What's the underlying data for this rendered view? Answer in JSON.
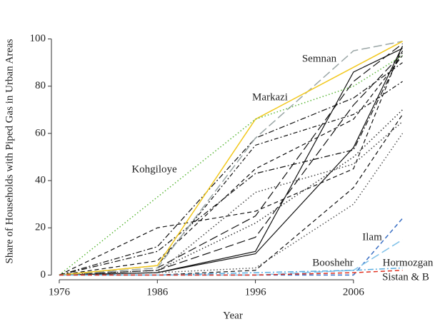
{
  "chart_data": {
    "type": "line",
    "x_label": "Year",
    "y_label": "Share of Households with Piped Gas in Urban Areas",
    "x": [
      1976,
      1986,
      1996,
      2006,
      2011
    ],
    "xlim": [
      1975.2,
      2012.2
    ],
    "xticks": [
      1976,
      1986,
      1996,
      2006
    ],
    "ylim": [
      -2,
      102
    ],
    "yticks": [
      0,
      20,
      40,
      60,
      80,
      100
    ],
    "series": [
      {
        "color": "#111111",
        "style": "dashed",
        "values": [
          0,
          20,
          27,
          45,
          97
        ]
      },
      {
        "color": "#111111",
        "style": "solid",
        "values": [
          0,
          1,
          10,
          86,
          96
        ]
      },
      {
        "color": "#111111",
        "style": "solid",
        "values": [
          0,
          1,
          9,
          54,
          97
        ]
      },
      {
        "color": "#111111",
        "style": "longdash",
        "values": [
          0,
          2,
          16,
          72,
          94
        ]
      },
      {
        "color": "#111111",
        "style": "dashdot",
        "values": [
          0,
          10,
          43,
          53,
          95
        ]
      },
      {
        "color": "#111111",
        "style": "longdash",
        "values": [
          0,
          3,
          25,
          82,
          98
        ]
      },
      {
        "color": "#111111",
        "style": "dashed",
        "values": [
          0,
          6,
          45,
          66,
          93
        ]
      },
      {
        "color": "#555555",
        "style": "dotted",
        "values": [
          0,
          1,
          3,
          30,
          60
        ]
      },
      {
        "color": "#333333",
        "style": "dotted",
        "values": [
          0,
          2,
          22,
          50,
          70
        ]
      },
      {
        "color": "#111111",
        "style": "dotdash",
        "values": [
          0,
          4,
          55,
          68,
          82
        ]
      },
      {
        "color": "#444444",
        "style": "dotted",
        "values": [
          0,
          1,
          35,
          47,
          65
        ]
      },
      {
        "color": "#111111",
        "style": "dashdot",
        "values": [
          0,
          12,
          58,
          75,
          90
        ]
      },
      {
        "color": "#111111",
        "style": "dashed",
        "values": [
          0,
          0,
          2,
          37,
          68
        ]
      },
      {
        "name": "Semnan",
        "color": "#9aa6a6",
        "style": "longdash",
        "values": [
          0,
          3,
          58,
          95,
          99
        ]
      },
      {
        "name": "Markazi",
        "color": "#f2c81e",
        "style": "solid",
        "values": [
          0,
          4,
          66,
          88,
          99
        ]
      },
      {
        "name": "Kohgiloye",
        "color": "#5cb83a",
        "style": "dotted",
        "values": [
          0,
          33,
          66,
          80,
          93
        ]
      },
      {
        "name": "Ilam",
        "color": "#3a6fc4",
        "style": "dashed",
        "values": [
          0,
          0,
          0,
          0,
          24
        ]
      },
      {
        "name": "Hormozgan",
        "color": "#7ec0e8",
        "style": "longdash",
        "values": [
          0,
          0,
          0,
          2,
          15
        ]
      },
      {
        "name": "Booshehr",
        "color": "#5aaee0",
        "style": "dashdot",
        "values": [
          0,
          0,
          1,
          2,
          3
        ]
      },
      {
        "name": "Sistan & B",
        "color": "#e03020",
        "style": "dashed",
        "values": [
          0,
          0,
          0,
          1,
          2
        ]
      }
    ]
  }
}
